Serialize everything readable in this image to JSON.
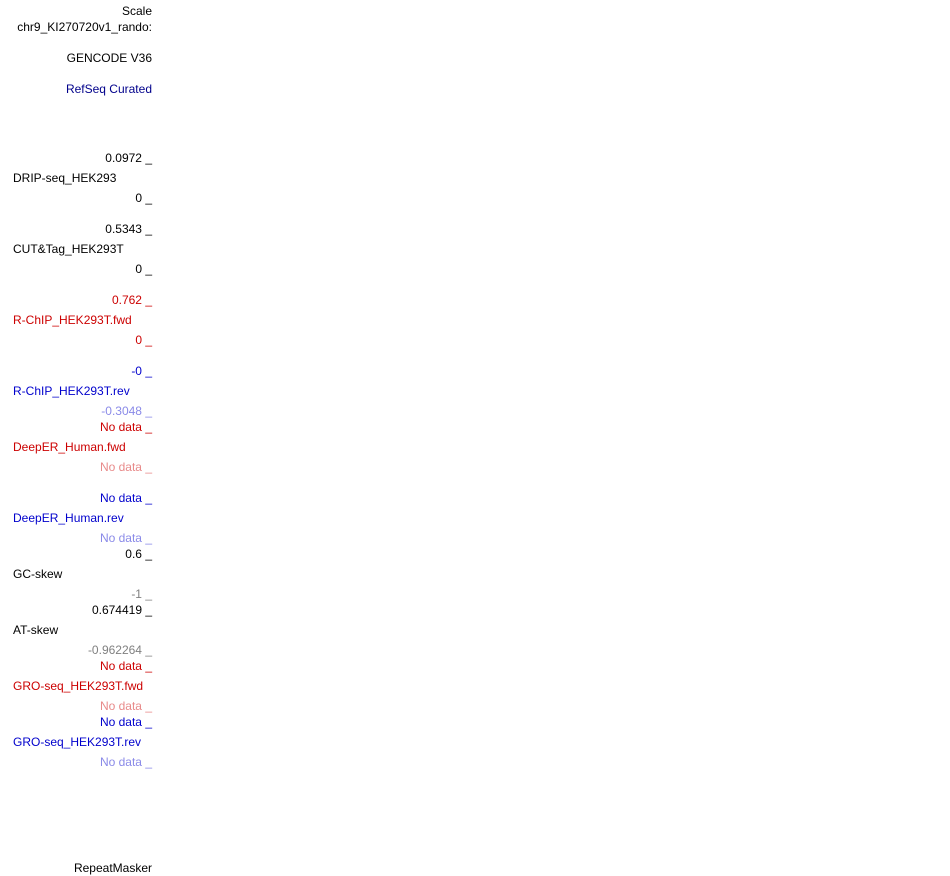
{
  "tracks_panel": {
    "scale_label": "Scale",
    "chrom_label": "chr9_KI270720v1_rando:",
    "gencode_label": "GENCODE V36",
    "refseq_label": "RefSeq Curated",
    "drip": {
      "max": "0.0972 _",
      "name": "DRIP-seq_HEK293",
      "min": "0 _"
    },
    "cuttag": {
      "max": "0.5343 _",
      "name": "CUT&Tag_HEK293T",
      "min": "0 _"
    },
    "rchip_fwd": {
      "max": "0.762 _",
      "name": "R-ChIP_HEK293T.fwd",
      "min": "0 _"
    },
    "rchip_rev": {
      "max": "-0 _",
      "name": "R-ChIP_HEK293T.rev",
      "min": "-0.3048 _"
    },
    "deeper_fwd": {
      "max": "No data _",
      "name": "DeepER_Human.fwd",
      "min": "No data _"
    },
    "deeper_rev": {
      "max": "No data _",
      "name": "DeepER_Human.rev",
      "min": "No data _"
    },
    "gc_skew": {
      "max": "0.6 _",
      "name": "GC-skew",
      "min": "-1 _"
    },
    "at_skew": {
      "max": "0.674419 _",
      "name": "AT-skew",
      "min": "-0.962264 _"
    },
    "gro_fwd": {
      "max": "No data _",
      "name": "GRO-seq_HEK293T.fwd",
      "min": "No data _"
    },
    "gro_rev": {
      "max": "No data _",
      "name": "GRO-seq_HEK293T.rev",
      "min": "No data _"
    },
    "repeatmasker_label": "RepeatMasker"
  },
  "colors": {
    "black": "#000000",
    "dark_blue": "#00008b",
    "red": "#cc0000",
    "light_red": "#e88a8a",
    "blue": "#0000cc",
    "light_blue": "#8a8ae8",
    "grey": "#808080"
  }
}
